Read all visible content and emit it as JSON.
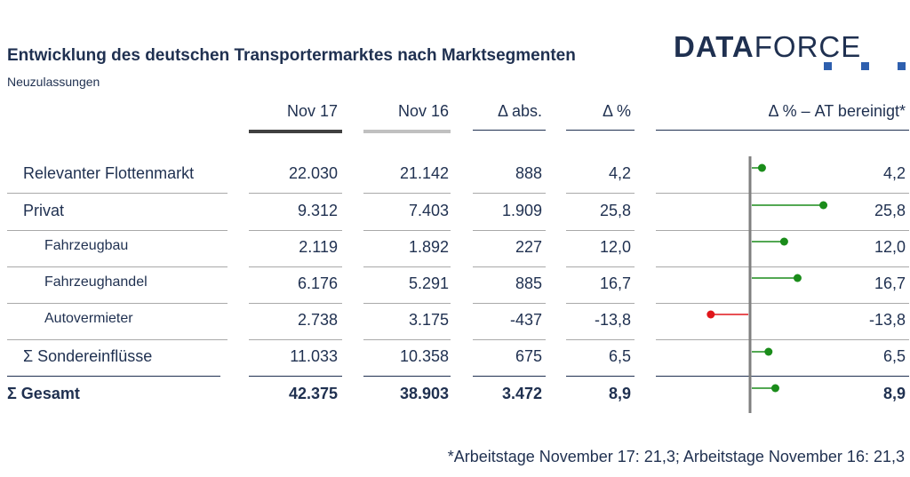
{
  "title": "Entwicklung des deutschen Transportermarktes nach Marktsegmenten",
  "subtitle": "Neuzulassungen",
  "logo": {
    "bold": "DATA",
    "light": "FORCE"
  },
  "headers": {
    "nov17": "Nov 17",
    "nov16": "Nov 16",
    "dabs": "Δ abs.",
    "dpct": "Δ %",
    "dpct_at": "Δ % – AT bereinigt*"
  },
  "colors": {
    "navy": "#1f3050",
    "nov17_bar": "#404040",
    "nov16_bar": "#c0c0c0",
    "positive": "#1a8c1a",
    "negative": "#e0161b",
    "logo_square": "#2e5fae"
  },
  "rows": [
    {
      "label": "Relevanter Flottenmarkt",
      "nov17": "22.030",
      "nov16": "21.142",
      "dabs": "888",
      "dpct": "4,2",
      "dpct_at": "4,2"
    },
    {
      "label": "Privat",
      "nov17": "9.312",
      "nov16": "7.403",
      "dabs": "1.909",
      "dpct": "25,8",
      "dpct_at": "25,8"
    },
    {
      "label": "Fahrzeugbau",
      "nov17": "2.119",
      "nov16": "1.892",
      "dabs": "227",
      "dpct": "12,0",
      "dpct_at": "12,0"
    },
    {
      "label": "Fahrzeughandel",
      "nov17": "6.176",
      "nov16": "5.291",
      "dabs": "885",
      "dpct": "16,7",
      "dpct_at": "16,7"
    },
    {
      "label": "Autovermieter",
      "nov17": "2.738",
      "nov16": "3.175",
      "dabs": "-437",
      "dpct": "-13,8",
      "dpct_at": "-13,8"
    },
    {
      "label": "Σ Sondereinflüsse",
      "nov17": "11.033",
      "nov16": "10.358",
      "dabs": "675",
      "dpct": "6,5",
      "dpct_at": "6,5"
    },
    {
      "label": "Σ Gesamt",
      "nov17": "42.375",
      "nov16": "38.903",
      "dabs": "3.472",
      "dpct": "8,9",
      "dpct_at": "8,9"
    }
  ],
  "chart_data": {
    "type": "lollipop",
    "categories": [
      "Relevanter Flottenmarkt",
      "Privat",
      "Fahrzeugbau",
      "Fahrzeughandel",
      "Autovermieter",
      "Σ Sondereinflüsse",
      "Σ Gesamt"
    ],
    "values": [
      4.2,
      25.8,
      12.0,
      16.7,
      -13.8,
      6.5,
      8.9
    ],
    "title": "Δ % – AT bereinigt*"
  },
  "footnote": "*Arbeitstage November 17: 21,3; Arbeitstage November 16: 21,3"
}
